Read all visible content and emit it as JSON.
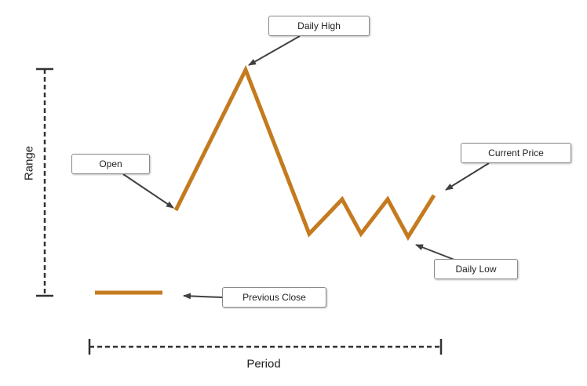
{
  "labels": {
    "daily_high": "Daily High",
    "open": "Open",
    "current_price": "Current Price",
    "daily_low": "Daily Low",
    "previous_close": "Previous Close",
    "range": "Range",
    "period": "Period"
  },
  "colors": {
    "price_line": "#c47a1e",
    "arrow": "#404040",
    "bracket": "#333333"
  }
}
